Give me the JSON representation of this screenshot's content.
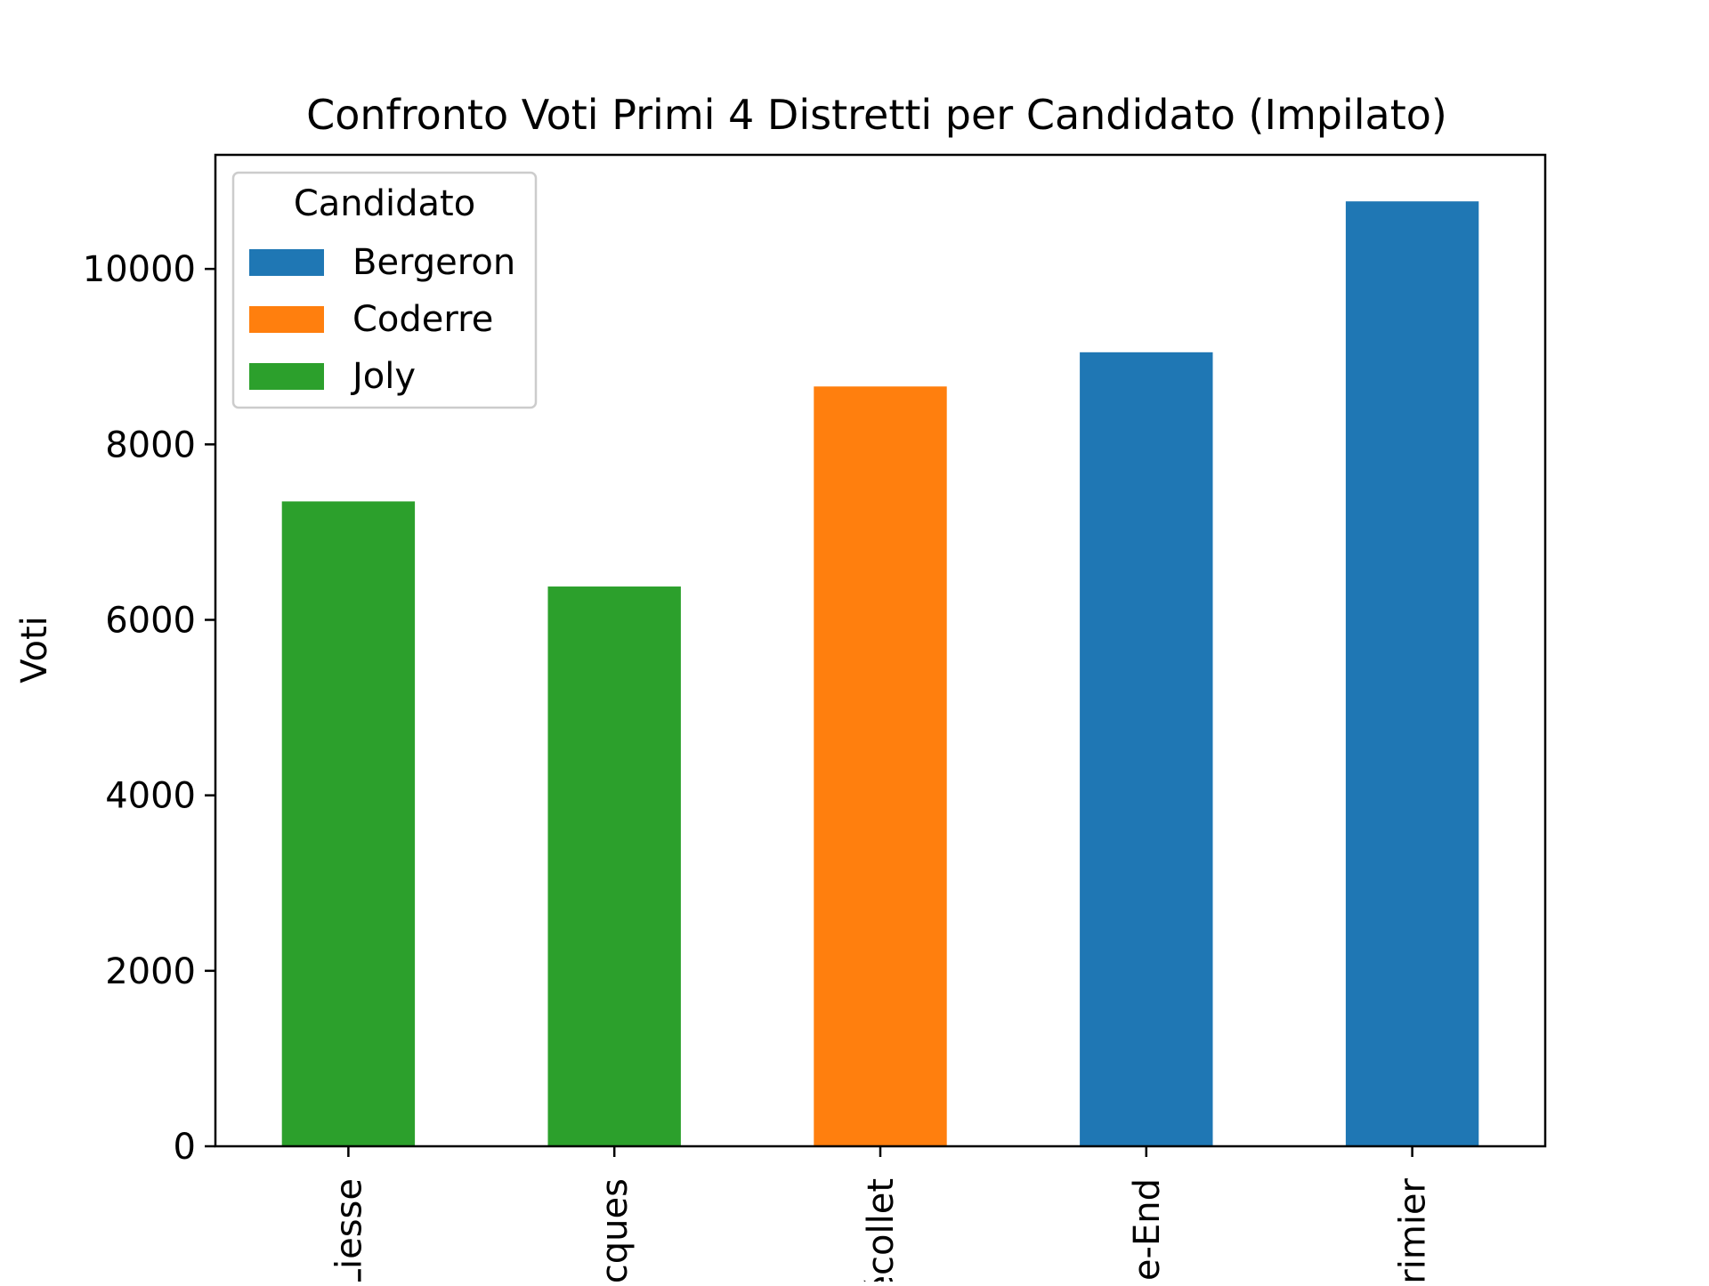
{
  "chart_data": {
    "type": "bar",
    "stacked": true,
    "title": "Confronto Voti Primi 4 Distretti per Candidato (Impilato)",
    "xlabel": "",
    "ylabel": "Voti",
    "categories": [
      "Liesse",
      "cques",
      "écollet",
      "e-End",
      "rimier"
    ],
    "series": [
      {
        "name": "Bergeron",
        "color": "#1f77b4",
        "values": [
          0,
          0,
          0,
          9050,
          10770
        ]
      },
      {
        "name": "Coderre",
        "color": "#ff7f0e",
        "values": [
          0,
          0,
          8660,
          0,
          0
        ]
      },
      {
        "name": "Joly",
        "color": "#2ca02c",
        "values": [
          7350,
          6380,
          0,
          0,
          0
        ]
      }
    ],
    "ylim": [
      0,
      11300
    ],
    "yticks": [
      0,
      2000,
      4000,
      6000,
      8000,
      10000
    ],
    "ytick_labels": [
      "0",
      "2000",
      "4000",
      "6000",
      "8000",
      "10000"
    ],
    "grid": false,
    "legend": {
      "title": "Candidato",
      "position": "top-left"
    },
    "x_tick_rotation": "vertical"
  }
}
